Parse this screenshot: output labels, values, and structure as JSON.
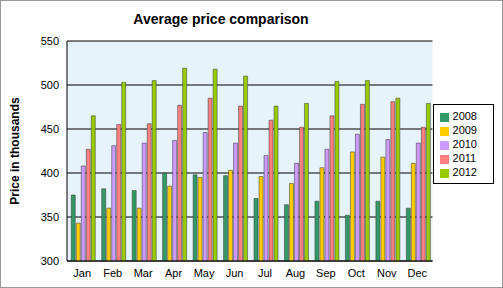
{
  "chart_data": {
    "type": "bar",
    "title": "Average price comparison",
    "y_label": "Price in thousands",
    "categories": [
      "Jan",
      "Feb",
      "Mar",
      "Apr",
      "May",
      "Jun",
      "Jul",
      "Aug",
      "Sep",
      "Oct",
      "Nov",
      "Dec"
    ],
    "series": [
      {
        "name": "2008",
        "color": "#339966",
        "values": [
          375,
          382,
          380,
          400,
          398,
          397,
          371,
          364,
          368,
          352,
          368,
          360
        ]
      },
      {
        "name": "2009",
        "color": "#ffcc00",
        "values": [
          343,
          360,
          360,
          385,
          395,
          403,
          396,
          388,
          406,
          424,
          418,
          411
        ]
      },
      {
        "name": "2010",
        "color": "#cc99ff",
        "values": [
          408,
          431,
          434,
          437,
          446,
          434,
          420,
          411,
          427,
          444,
          438,
          434
        ]
      },
      {
        "name": "2011",
        "color": "#ff8080",
        "values": [
          427,
          455,
          456,
          477,
          485,
          476,
          460,
          452,
          465,
          478,
          481,
          452
        ]
      },
      {
        "name": "2012",
        "color": "#99cc00",
        "values": [
          465,
          503,
          505,
          519,
          518,
          510,
          476,
          479,
          504,
          505,
          485,
          479
        ]
      }
    ],
    "ylim": [
      300,
      550
    ],
    "yticks": [
      300,
      350,
      400,
      450,
      500,
      550
    ],
    "grid": true,
    "legend": "right"
  }
}
